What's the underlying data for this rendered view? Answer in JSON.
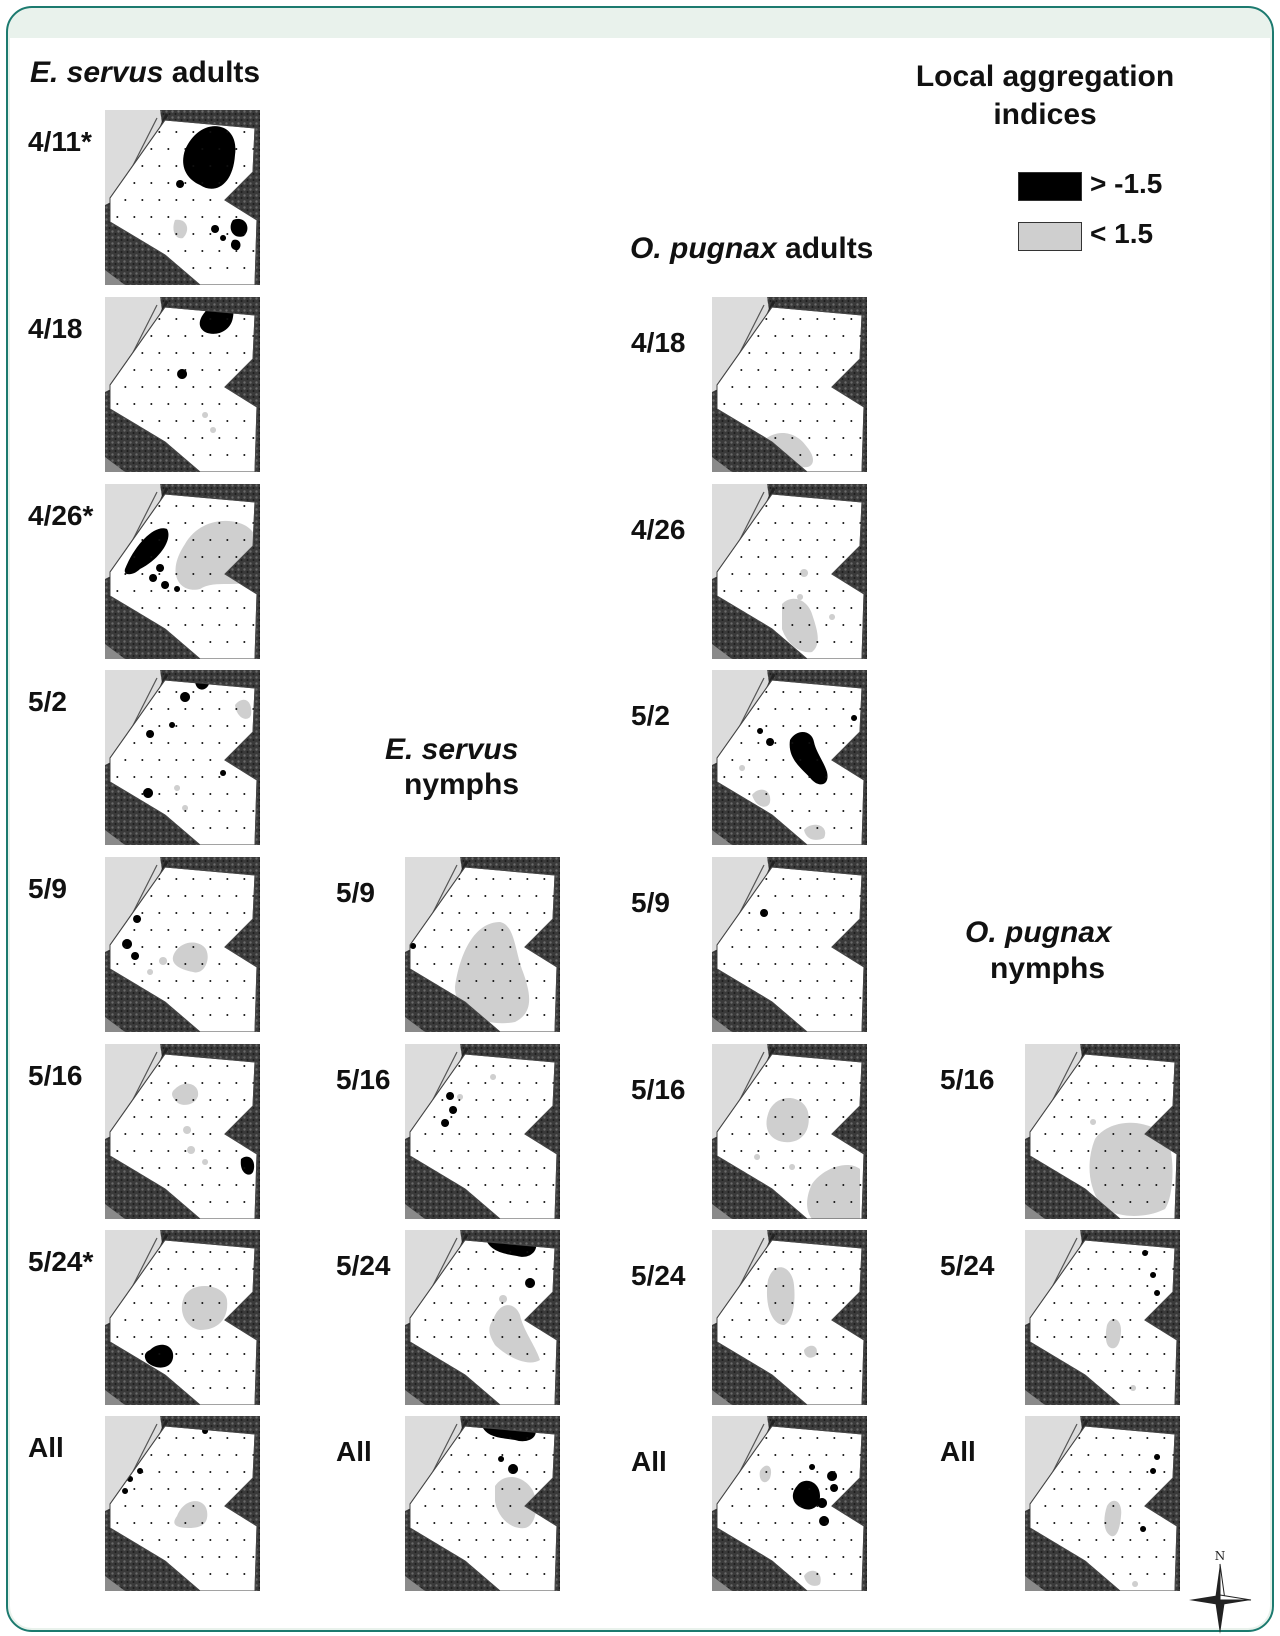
{
  "headings": {
    "es_adults": {
      "species": "E. servus",
      "stage": " adults"
    },
    "op_adults": {
      "species": "O. pugnax",
      "stage": " adults"
    },
    "es_nymphs": {
      "species": "E. servus",
      "stage": "nymphs"
    },
    "op_nymphs": {
      "species": "O. pugnax",
      "stage": "nymphs"
    }
  },
  "legend": {
    "title_line1": "Local aggregation",
    "title_line2": "indices",
    "items": [
      {
        "label": "> -1.5",
        "color": "#000000"
      },
      {
        "label": "< 1.5",
        "color": "#cfcfcf"
      }
    ]
  },
  "panels": {
    "es_adults": [
      {
        "label": "4/11*",
        "pattern": "a1"
      },
      {
        "label": "4/18",
        "pattern": "a2"
      },
      {
        "label": "4/26*",
        "pattern": "a3"
      },
      {
        "label": "5/2",
        "pattern": "a4"
      },
      {
        "label": "5/9",
        "pattern": "a5"
      },
      {
        "label": "5/16",
        "pattern": "a6"
      },
      {
        "label": "5/24*",
        "pattern": "a7"
      },
      {
        "label": "All",
        "pattern": "a8"
      }
    ],
    "es_nymphs": [
      {
        "label": "5/9",
        "pattern": "n1"
      },
      {
        "label": "5/16",
        "pattern": "n2"
      },
      {
        "label": "5/24",
        "pattern": "n3"
      },
      {
        "label": "All",
        "pattern": "n4"
      }
    ],
    "op_adults": [
      {
        "label": "4/18",
        "pattern": "p1"
      },
      {
        "label": "4/26",
        "pattern": "p2"
      },
      {
        "label": "5/2",
        "pattern": "p3"
      },
      {
        "label": "5/9",
        "pattern": "p4"
      },
      {
        "label": "5/16",
        "pattern": "p5"
      },
      {
        "label": "5/24",
        "pattern": "p6"
      },
      {
        "label": "All",
        "pattern": "p7"
      }
    ],
    "op_nymphs": [
      {
        "label": "5/16",
        "pattern": "q1"
      },
      {
        "label": "5/24",
        "pattern": "q2"
      },
      {
        "label": "All",
        "pattern": "q3"
      }
    ]
  },
  "compass": {
    "north_label": "N"
  },
  "colors": {
    "frame": "#1c7a6f",
    "frame_fill": "#e9f2ec",
    "high": "#000000",
    "low": "#cfcfcf",
    "terrain": "#3a3a3a"
  }
}
